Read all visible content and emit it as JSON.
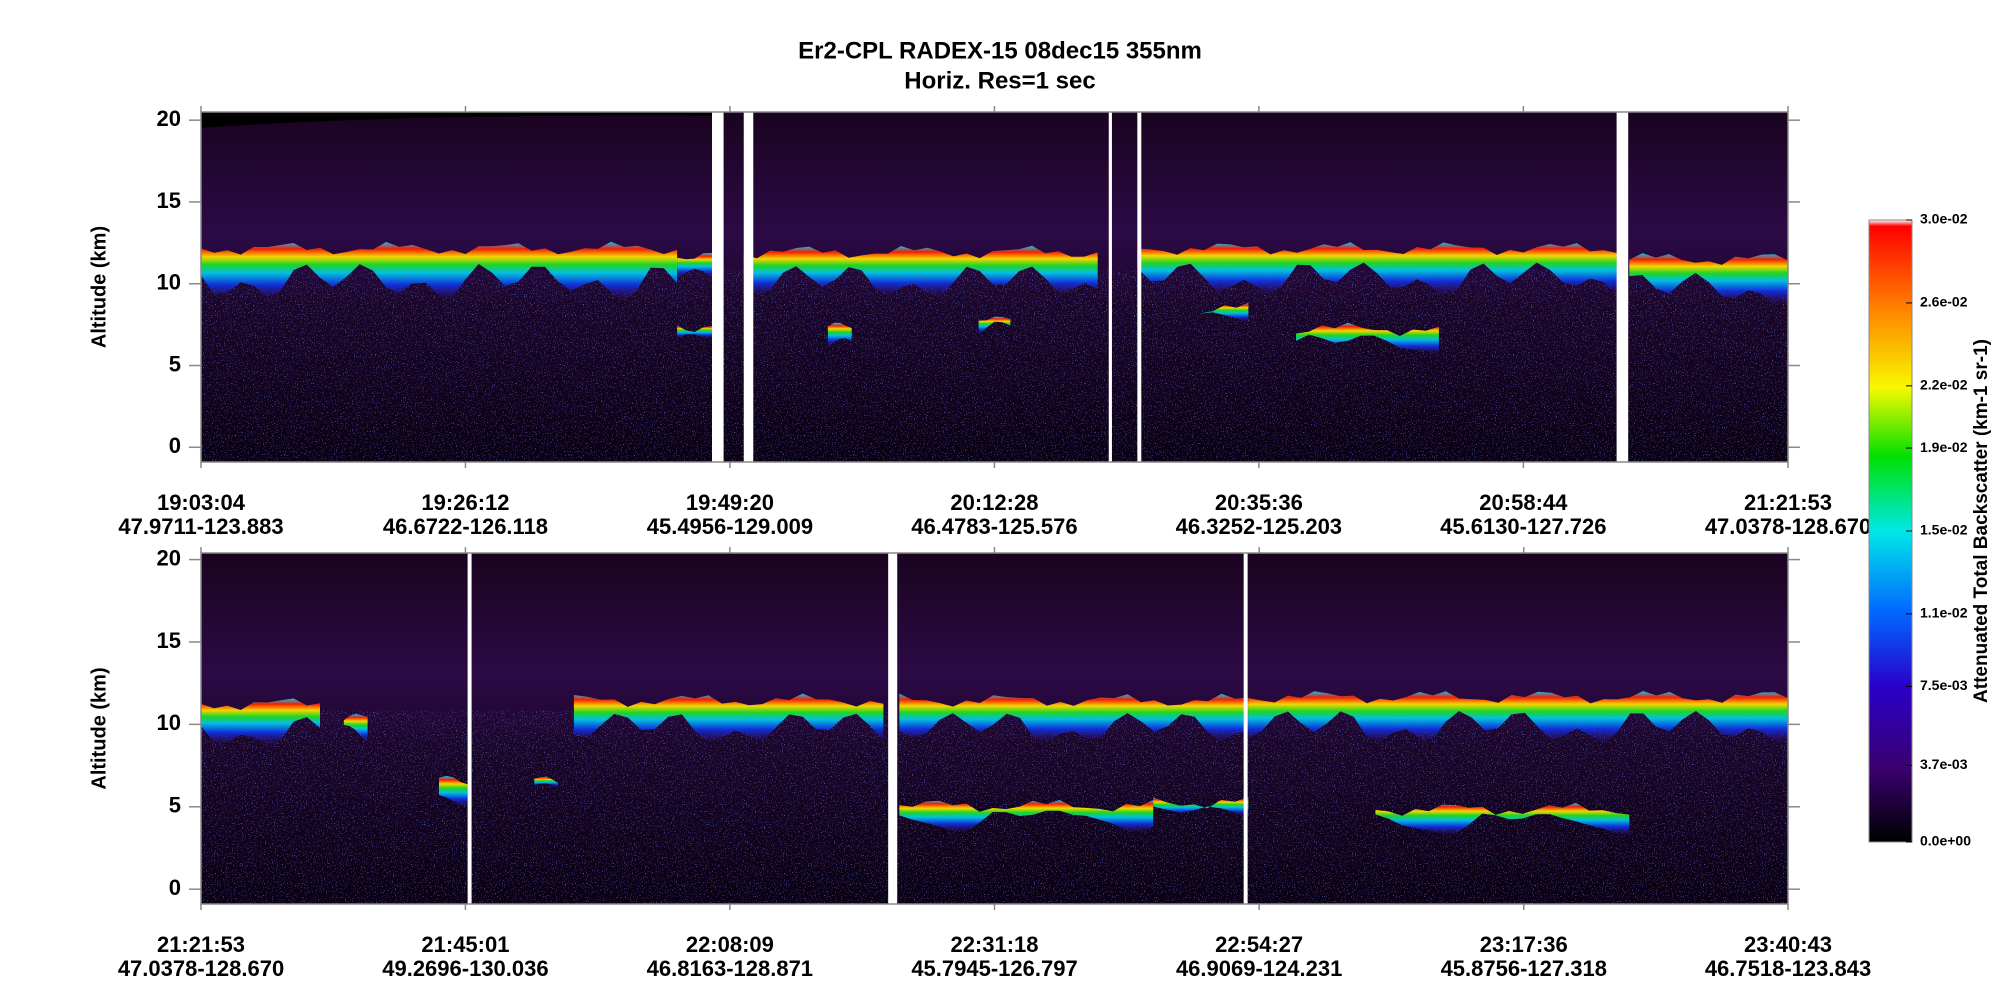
{
  "title": "Er2-CPL  RADEX-15  08dec15  355nm",
  "subtitle": "Horiz. Res=1 sec",
  "chart_data": [
    {
      "type": "curtain",
      "ylabel": "Altitude (km)",
      "ylim": [
        -0.9,
        20.5
      ],
      "yticks": [
        0,
        5,
        10,
        15,
        20
      ],
      "xlim": [
        68584,
        76913
      ],
      "xticks": [
        {
          "value": 68584,
          "label": "19:03:04"
        },
        {
          "value": 69972,
          "label": "19:26:12"
        },
        {
          "value": 71360,
          "label": "19:49:20"
        },
        {
          "value": 72748,
          "label": "20:12:28"
        },
        {
          "value": 74136,
          "label": "20:35:36"
        },
        {
          "value": 75524,
          "label": "20:58:44"
        },
        {
          "value": 76913,
          "label": "21:21:53"
        }
      ],
      "xtick_locations": [
        "47.9711-123.883",
        "46.6722-126.118",
        "45.4956-129.009",
        "46.4783-125.576",
        "46.3252-125.203",
        "45.6130-127.726",
        "47.0378-128.670"
      ]
    },
    {
      "type": "curtain",
      "ylabel": "Altitude (km)",
      "ylim": [
        -0.9,
        20.4
      ],
      "yticks": [
        0,
        5,
        10,
        15,
        20
      ],
      "xlim": [
        76913,
        85243
      ],
      "xticks": [
        {
          "value": 76913,
          "label": "21:21:53"
        },
        {
          "value": 78301,
          "label": "21:45:01"
        },
        {
          "value": 79689,
          "label": "22:08:09"
        },
        {
          "value": 81078,
          "label": "22:31:18"
        },
        {
          "value": 82467,
          "label": "22:54:27"
        },
        {
          "value": 83856,
          "label": "23:17:36"
        },
        {
          "value": 85243,
          "label": "23:40:43"
        }
      ],
      "xtick_locations": [
        "47.0378-128.670",
        "49.2696-130.036",
        "46.8163-128.871",
        "45.7945-126.797",
        "46.9069-124.231",
        "45.8756-127.318",
        "46.7518-123.843"
      ]
    }
  ],
  "colorbar": {
    "label": "Attenuated Total Backscatter (km-1 sr-1)",
    "lim": [
      0,
      0.03
    ],
    "ticks": [
      {
        "value": 0,
        "label": "0.0e+00"
      },
      {
        "value": 0.0037,
        "label": "3.7e-03"
      },
      {
        "value": 0.0075,
        "label": "7.5e-03"
      },
      {
        "value": 0.011,
        "label": "1.1e-02"
      },
      {
        "value": 0.015,
        "label": "1.5e-02"
      },
      {
        "value": 0.019,
        "label": "1.9e-02"
      },
      {
        "value": 0.022,
        "label": "2.2e-02"
      },
      {
        "value": 0.026,
        "label": "2.6e-02"
      },
      {
        "value": 0.03,
        "label": "3.0e-02"
      }
    ]
  }
}
